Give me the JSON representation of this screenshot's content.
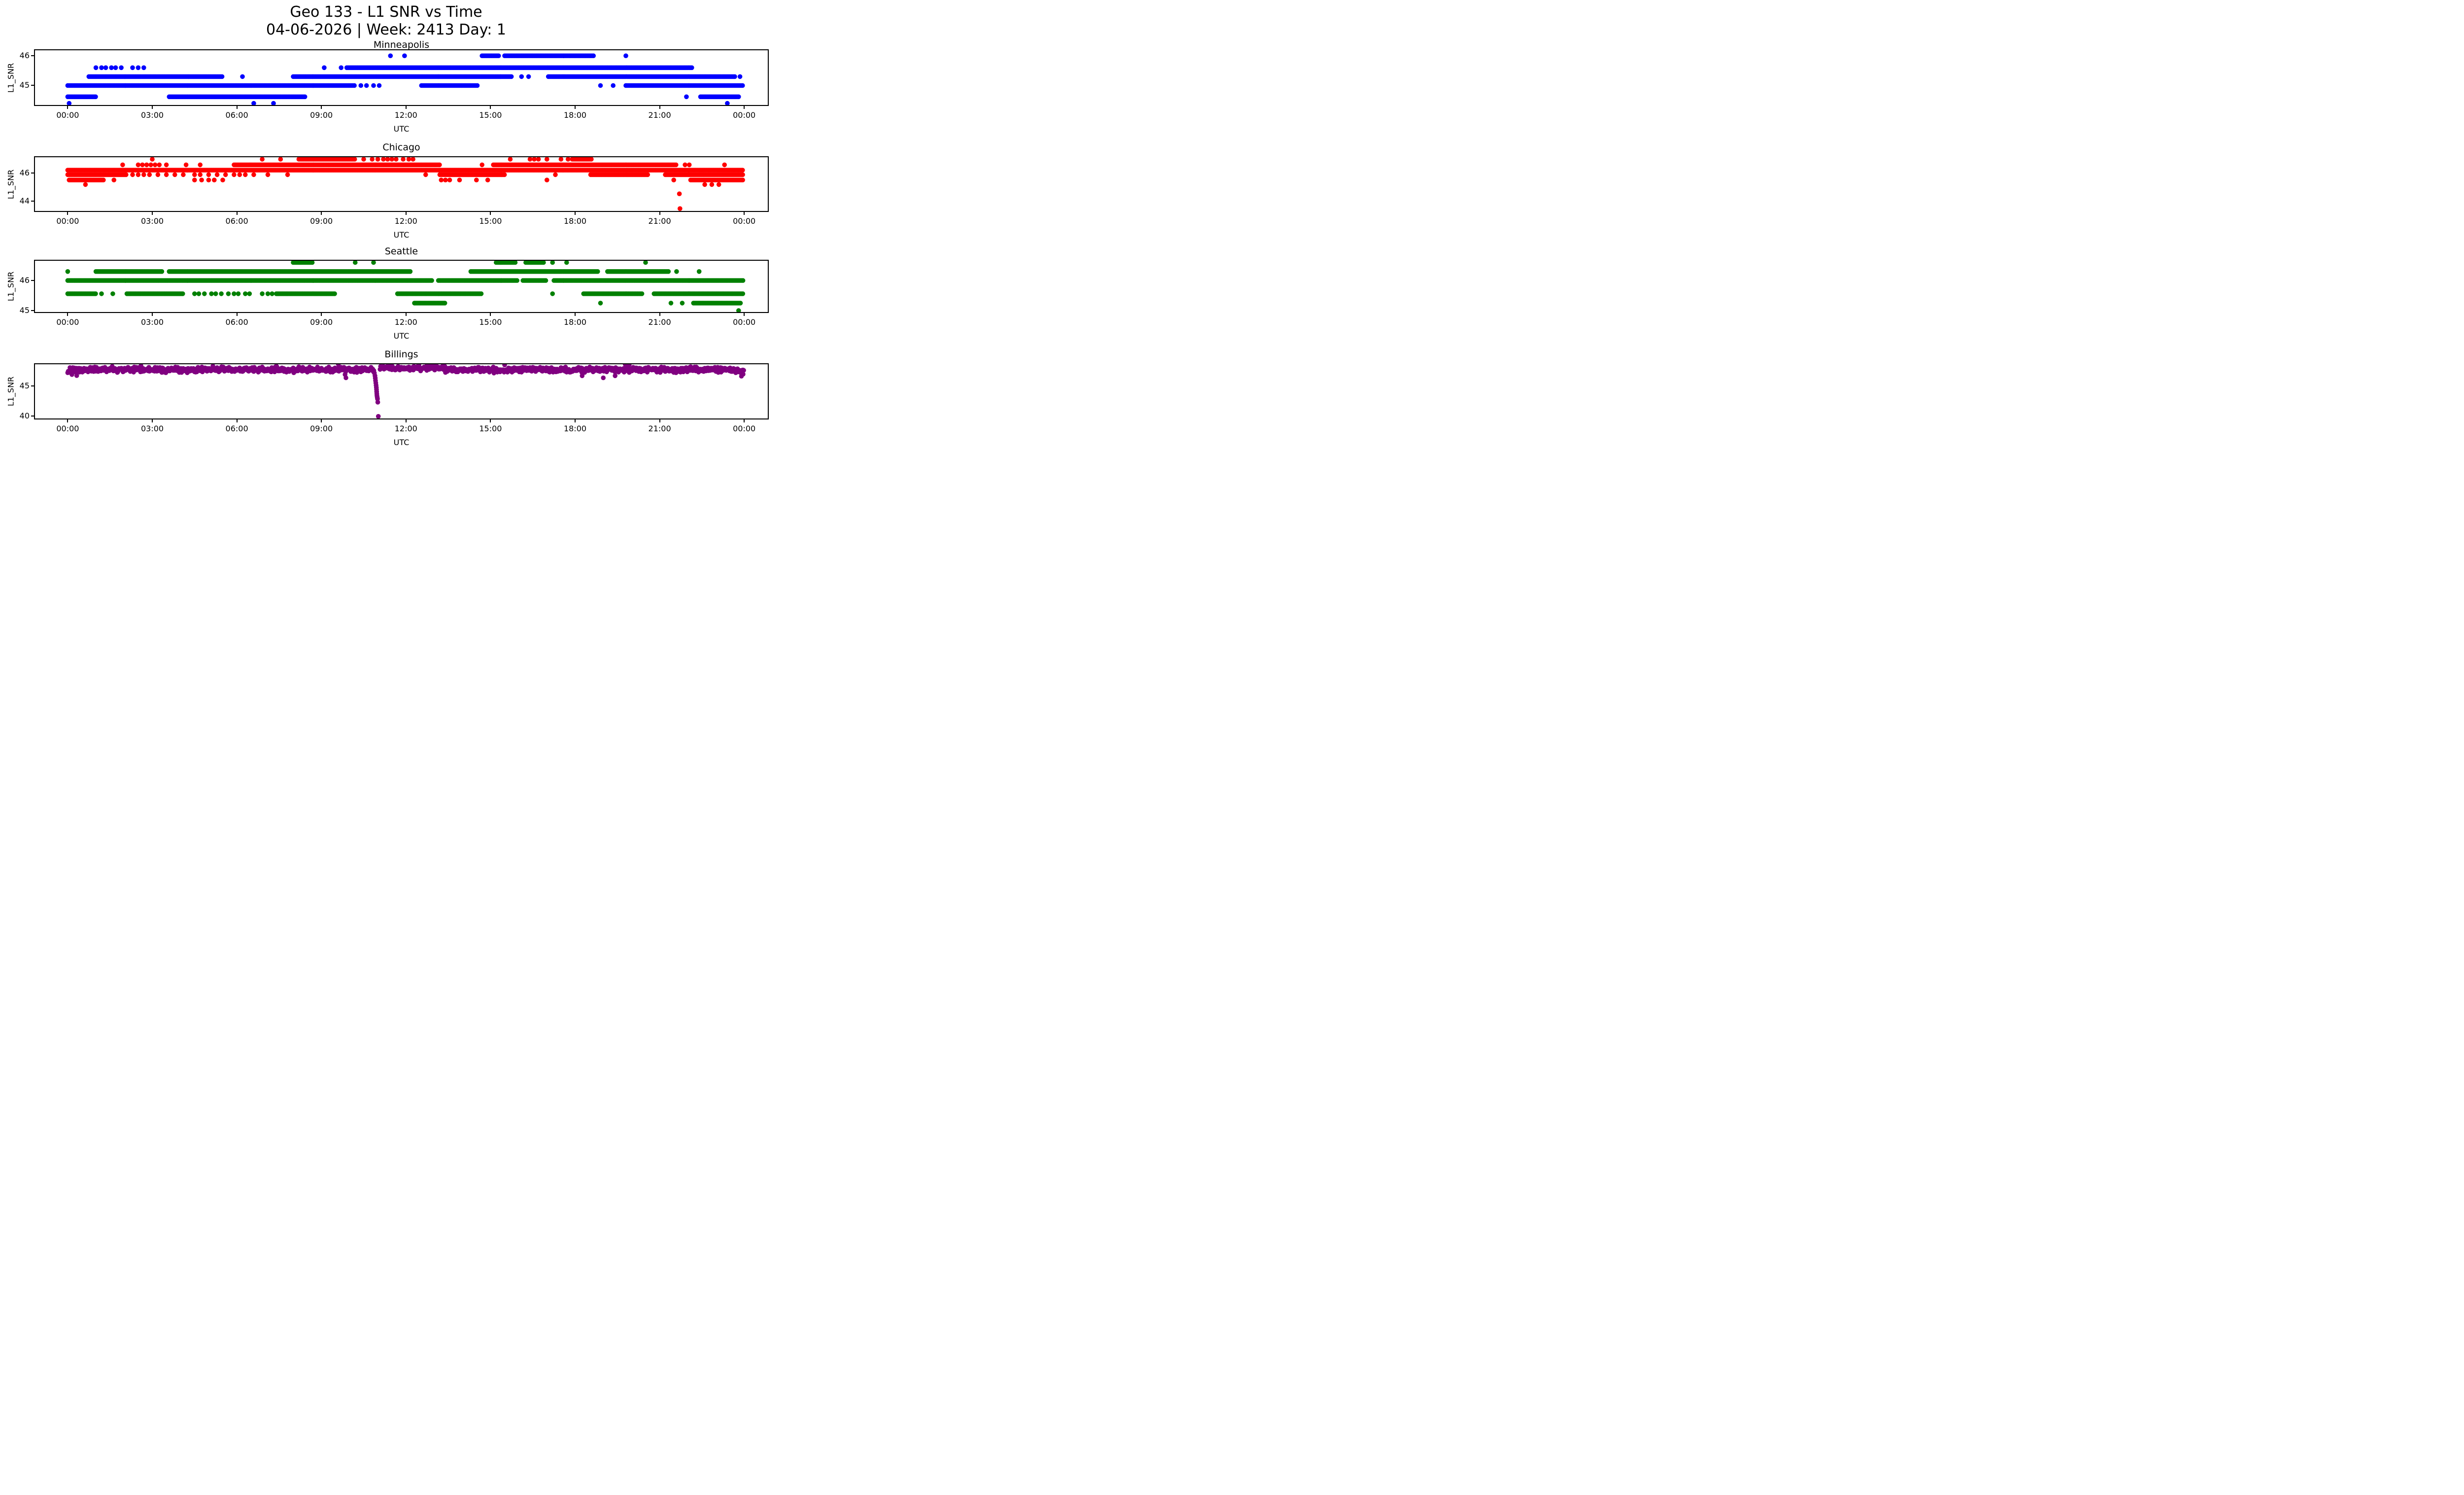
{
  "figure": {
    "title_line1": "Geo 133 - L1 SNR vs Time",
    "title_line2": "04-06-2026 | Week: 2413 Day: 1",
    "background": "#ffffff"
  },
  "axis": {
    "xlabel": "UTC",
    "ylabel": "L1_SNR",
    "x_tick_hours": [
      0,
      3,
      6,
      9,
      12,
      15,
      18,
      21,
      24
    ],
    "x_tick_labels": [
      "00:00",
      "03:00",
      "06:00",
      "09:00",
      "12:00",
      "15:00",
      "18:00",
      "21:00",
      "00:00"
    ]
  },
  "chart_data": [
    {
      "type": "scatter",
      "title": "Minneapolis",
      "color": "#0000ff",
      "xlabel": "UTC",
      "ylabel": "L1_SNR",
      "x_unit": "hours_utc",
      "xlim": [
        -1.2,
        24.87
      ],
      "ylim": [
        44.31,
        46.22
      ],
      "yticks": [
        45,
        46
      ],
      "snr_levels": [
        46.0,
        45.6,
        45.3,
        45.0,
        44.62,
        44.4
      ],
      "bands": [
        {
          "snr": 46.0,
          "segments": [
            [
              14.7,
              15.3
            ],
            [
              15.5,
              18.65
            ]
          ],
          "dots": [
            11.45,
            11.95,
            19.8
          ]
        },
        {
          "snr": 45.6,
          "segments": [
            [
              9.9,
              22.15
            ]
          ],
          "dots": [
            1.0,
            1.2,
            1.35,
            1.55,
            1.7,
            1.9,
            2.3,
            2.5,
            2.7,
            9.1,
            9.7
          ]
        },
        {
          "snr": 45.3,
          "segments": [
            [
              0.75,
              5.5
            ],
            [
              8.0,
              15.75
            ],
            [
              17.05,
              23.7
            ]
          ],
          "dots": [
            6.2,
            16.1,
            16.35,
            23.85
          ]
        },
        {
          "snr": 45.0,
          "segments": [
            [
              0.0,
              10.2
            ],
            [
              12.55,
              14.55
            ],
            [
              19.8,
              23.98
            ]
          ],
          "dots": [
            10.4,
            10.6,
            10.85,
            11.05,
            18.9,
            19.35
          ]
        },
        {
          "snr": 44.62,
          "segments": [
            [
              0.0,
              1.0
            ],
            [
              3.6,
              8.45
            ],
            [
              22.45,
              23.8
            ]
          ],
          "dots": [
            21.95
          ]
        },
        {
          "snr": 44.4,
          "segments": [],
          "dots": [
            0.05,
            6.6,
            7.3,
            23.4
          ]
        }
      ],
      "outliers": []
    },
    {
      "type": "scatter",
      "title": "Chicago",
      "color": "#ff0000",
      "xlabel": "UTC",
      "ylabel": "L1_SNR",
      "x_unit": "hours_utc",
      "xlim": [
        -1.2,
        24.87
      ],
      "ylim": [
        43.23,
        47.19
      ],
      "yticks": [
        44,
        46
      ],
      "snr_levels": [
        46.98,
        46.58,
        46.2,
        45.88,
        45.5,
        45.18
      ],
      "bands": [
        {
          "snr": 46.98,
          "segments": [
            [
              8.2,
              10.2
            ],
            [
              17.9,
              18.6
            ]
          ],
          "dots": [
            3.0,
            6.9,
            7.55,
            10.5,
            10.8,
            11.0,
            11.2,
            11.35,
            11.5,
            11.65,
            11.9,
            12.1,
            12.25,
            15.7,
            16.4,
            16.55,
            16.7,
            17.0,
            17.5,
            17.75
          ]
        },
        {
          "snr": 46.58,
          "segments": [
            [
              5.9,
              13.2
            ],
            [
              15.1,
              21.6
            ]
          ],
          "dots": [
            1.95,
            2.5,
            2.65,
            2.8,
            2.95,
            3.1,
            3.25,
            3.5,
            4.2,
            4.7,
            14.7,
            21.9,
            22.05,
            23.3
          ]
        },
        {
          "snr": 46.2,
          "segments": [
            [
              0.0,
              23.98
            ]
          ],
          "dots": []
        },
        {
          "snr": 45.88,
          "segments": [
            [
              0.0,
              2.1
            ],
            [
              13.2,
              15.5
            ],
            [
              18.55,
              20.6
            ],
            [
              21.2,
              23.98
            ]
          ],
          "dots": [
            2.3,
            2.5,
            2.7,
            2.9,
            3.2,
            3.5,
            3.8,
            4.1,
            4.5,
            4.7,
            5.0,
            5.3,
            5.6,
            5.9,
            6.1,
            6.3,
            6.6,
            7.1,
            7.8,
            12.7,
            17.3
          ]
        },
        {
          "snr": 45.5,
          "segments": [
            [
              0.05,
              1.3
            ],
            [
              22.1,
              23.98
            ]
          ],
          "dots": [
            1.64,
            4.5,
            4.75,
            5.0,
            5.2,
            5.5,
            13.25,
            13.4,
            13.55,
            13.9,
            14.5,
            14.9,
            17.0,
            21.5
          ]
        },
        {
          "snr": 45.18,
          "segments": [],
          "dots": [
            0.63,
            22.6,
            22.85,
            23.1
          ]
        }
      ],
      "outliers": [
        [
          21.7,
          44.52
        ],
        [
          21.72,
          43.47
        ]
      ]
    },
    {
      "type": "scatter",
      "title": "Seattle",
      "color": "#008000",
      "xlabel": "UTC",
      "ylabel": "L1_SNR",
      "x_unit": "hours_utc",
      "xlim": [
        -1.2,
        24.87
      ],
      "ylim": [
        44.92,
        46.69
      ],
      "yticks": [
        45,
        46
      ],
      "snr_levels": [
        46.6,
        46.3,
        46.0,
        45.56,
        45.25,
        45.0
      ],
      "bands": [
        {
          "snr": 46.6,
          "segments": [
            [
              8.0,
              8.7
            ],
            [
              15.2,
              15.9
            ],
            [
              16.25,
              16.9
            ]
          ],
          "dots": [
            10.2,
            10.85,
            17.2,
            17.7,
            20.5
          ]
        },
        {
          "snr": 46.3,
          "segments": [
            [
              1.0,
              3.35
            ],
            [
              3.6,
              12.15
            ],
            [
              14.3,
              18.8
            ],
            [
              19.15,
              21.35
            ]
          ],
          "dots": [
            0.0,
            21.6,
            22.4
          ]
        },
        {
          "snr": 46.0,
          "segments": [
            [
              0.0,
              12.95
            ],
            [
              13.15,
              15.95
            ],
            [
              16.15,
              17.0
            ],
            [
              17.25,
              23.98
            ]
          ],
          "dots": []
        },
        {
          "snr": 45.56,
          "segments": [
            [
              0.0,
              1.0
            ],
            [
              2.1,
              4.1
            ],
            [
              7.4,
              9.5
            ],
            [
              11.7,
              14.7
            ],
            [
              18.3,
              20.4
            ],
            [
              20.8,
              23.98
            ]
          ],
          "dots": [
            1.2,
            1.6,
            4.5,
            4.65,
            4.85,
            5.1,
            5.25,
            5.45,
            5.7,
            5.9,
            6.05,
            6.3,
            6.45,
            6.9,
            7.1,
            7.25,
            17.2
          ]
        },
        {
          "snr": 45.25,
          "segments": [
            [
              12.3,
              13.4
            ],
            [
              22.2,
              23.9
            ]
          ],
          "dots": [
            18.9,
            21.4,
            21.8
          ]
        },
        {
          "snr": 45.0,
          "segments": [],
          "dots": [
            23.8
          ]
        }
      ],
      "outliers": []
    },
    {
      "type": "scatter",
      "title": "Billings",
      "color": "#800080",
      "xlabel": "UTC",
      "ylabel": "L1_SNR",
      "x_unit": "hours_utc",
      "xlim": [
        -1.2,
        24.87
      ],
      "ylim": [
        39.43,
        48.77
      ],
      "yticks": [
        40,
        45
      ],
      "noise_band": {
        "segments": [
          [
            0.0,
            10.86
          ],
          [
            11.08,
            23.98
          ]
        ],
        "mean": 47.7,
        "spread": 0.55,
        "step": 0.02,
        "seed": 42,
        "quantize": 0.05,
        "envelope": [
          {
            "range": [
              11.08,
              13.35
            ],
            "offset": 0.28
          },
          {
            "range": [
              0.0,
              0.4
            ],
            "offset": -0.12
          },
          {
            "range": [
              23.5,
              23.98
            ],
            "offset": -0.1
          }
        ]
      },
      "spikes": [
        [
          2.6,
          48.35
        ],
        [
          5.15,
          48.3
        ],
        [
          7.4,
          48.3
        ],
        [
          9.6,
          48.62
        ],
        [
          12.45,
          48.55
        ],
        [
          12.75,
          48.6
        ],
        [
          13.05,
          48.55
        ],
        [
          15.5,
          48.5
        ],
        [
          19.78,
          48.6
        ],
        [
          19.92,
          48.55
        ]
      ],
      "dips": [
        [
          0.15,
          46.9
        ],
        [
          0.32,
          46.72
        ],
        [
          9.84,
          46.9
        ],
        [
          9.87,
          46.35
        ],
        [
          18.25,
          46.7
        ],
        [
          19.0,
          46.35
        ],
        [
          19.42,
          46.7
        ],
        [
          23.9,
          46.62
        ],
        [
          23.96,
          46.95
        ]
      ],
      "dropout": [
        [
          10.88,
          47.15
        ],
        [
          10.9,
          46.7
        ],
        [
          10.91,
          46.3
        ],
        [
          10.92,
          45.9
        ],
        [
          10.93,
          45.5
        ],
        [
          10.94,
          45.1
        ],
        [
          10.95,
          44.75
        ],
        [
          10.955,
          44.4
        ],
        [
          10.96,
          44.05
        ],
        [
          10.965,
          43.7
        ],
        [
          10.97,
          43.4
        ],
        [
          10.98,
          43.1
        ],
        [
          10.99,
          42.85
        ],
        [
          11.0,
          42.3
        ],
        [
          11.02,
          39.95
        ]
      ],
      "outliers": []
    }
  ]
}
